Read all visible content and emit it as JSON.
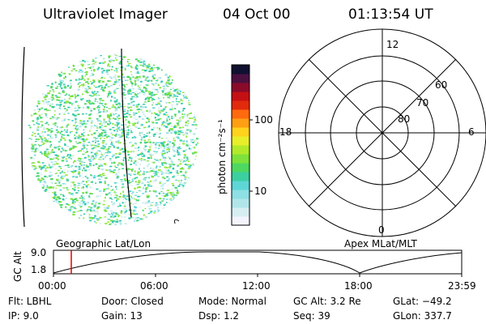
{
  "header": {
    "instrument": "Ultraviolet Imager",
    "date": "04 Oct 00",
    "time": "01:13:54 UT"
  },
  "colorbar": {
    "unit_label": "photon cm⁻²s⁻¹",
    "ticks": [
      "100",
      "10"
    ],
    "colors": [
      "#f4f4ff",
      "#d6eef2",
      "#b0e6ea",
      "#8ee0e4",
      "#5ed6d6",
      "#3ccfa0",
      "#4ed860",
      "#7ee23a",
      "#b2ea2a",
      "#e8ee2a",
      "#ffd21e",
      "#ffa014",
      "#ff6a0e",
      "#e22a0c",
      "#c41014",
      "#8a0a2a",
      "#4a1040",
      "#101030"
    ]
  },
  "polar_plot": {
    "mlt_labels": {
      "top": "12",
      "left": "18",
      "right": "6",
      "bottom": "0"
    },
    "lat_labels": [
      "60",
      "70",
      "80"
    ]
  },
  "timeline": {
    "y_axis_label": "GC Alt",
    "y_ticks": [
      "9.0",
      "1.8"
    ],
    "left_caption": "Geographic Lat/Lon",
    "right_caption": "Apex MLat/MLT",
    "x_ticks": [
      "00:00",
      "06:00",
      "12:00",
      "18:00",
      "23:59"
    ],
    "current_marker_time": "01:13"
  },
  "info": {
    "flt": "Flt: LBHL",
    "ip": "IP:  9.0",
    "door": "Door: Closed",
    "gain": "Gain: 13",
    "mode": "Mode: Normal",
    "dsp": "Dsp:    1.2",
    "gc_alt": "GC Alt: 3.2 Re",
    "seq": "Seq: 39",
    "glat": "GLat:  −49.2",
    "glon": "GLon: 337.7"
  }
}
